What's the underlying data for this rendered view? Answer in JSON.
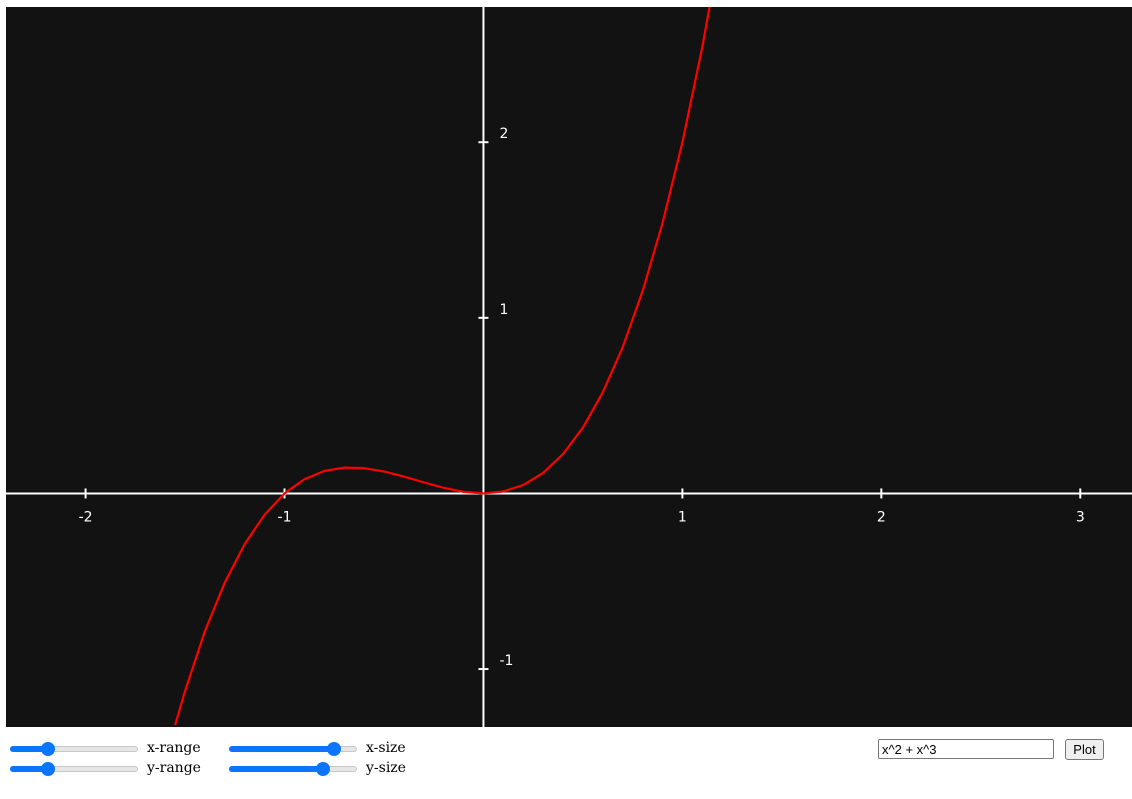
{
  "plot": {
    "background": "#121212",
    "axis_color": "#ffffff",
    "curve_color": "#ff0000",
    "function": "x^2 + x^3",
    "x_ticks": [
      "-2",
      "-1",
      "1",
      "2",
      "3"
    ],
    "y_ticks": [
      "2",
      "1",
      "-1"
    ]
  },
  "chart_data": {
    "type": "line",
    "title": "",
    "xlabel": "",
    "ylabel": "",
    "xlim": [
      -2.4,
      3.26
    ],
    "ylim": [
      -1.33,
      2.77
    ],
    "series": [
      {
        "x": [
          -1.55,
          -1.5,
          -1.4,
          -1.3,
          -1.2,
          -1.1,
          -1.0,
          -0.9,
          -0.8,
          -0.7,
          -0.6,
          -0.5,
          -0.4,
          -0.3,
          -0.2,
          -0.1,
          0.0,
          0.1,
          0.2,
          0.3,
          0.4,
          0.5,
          0.6,
          0.7,
          0.8,
          0.9,
          1.0,
          1.1,
          1.2
        ],
        "y": [
          -1.32,
          -1.125,
          -0.784,
          -0.507,
          -0.288,
          -0.121,
          0.0,
          0.081,
          0.128,
          0.147,
          0.144,
          0.125,
          0.096,
          0.063,
          0.032,
          0.009,
          0.0,
          0.011,
          0.048,
          0.117,
          0.224,
          0.375,
          0.576,
          0.833,
          1.152,
          1.539,
          2.0,
          2.541,
          3.168
        ]
      }
    ],
    "grid": false
  },
  "controls": {
    "x_range": {
      "label": "x-range",
      "value": 0.27
    },
    "y_range": {
      "label": "y-range",
      "value": 0.27
    },
    "x_size": {
      "label": "x-size",
      "value": 0.86
    },
    "y_size": {
      "label": "y-size",
      "value": 0.76
    },
    "expression": {
      "value": "x^2 + x^3"
    },
    "plot_button": {
      "label": "Plot"
    }
  }
}
